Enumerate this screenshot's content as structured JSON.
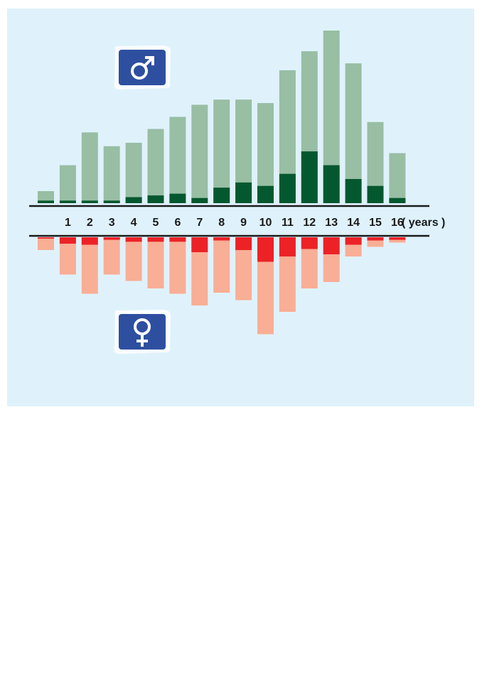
{
  "colors": {
    "background": "#dff2fc",
    "male_total": "#98bea4",
    "male_highlight": "#04582f",
    "female_total": "#f9ae96",
    "female_highlight": "#ec2227",
    "axis_line": "#1a1a1a",
    "symbol_blue": "#2e4fa0"
  },
  "icons": {
    "male": "male-symbol-icon",
    "female": "female-symbol-icon"
  },
  "chart_data": {
    "type": "bar",
    "layout": "mirrored",
    "categories": [
      "",
      "1",
      "2",
      "3",
      "4",
      "5",
      "6",
      "7",
      "8",
      "9",
      "10",
      "11",
      "12",
      "13",
      "14",
      "15",
      "16"
    ],
    "unit_label": "( years )",
    "ylim_male": [
      0,
      100
    ],
    "ylim_female": [
      0,
      100
    ],
    "male": {
      "total": [
        7,
        22,
        41,
        33,
        35,
        43,
        50,
        57,
        60,
        60,
        58,
        77,
        88,
        100,
        81,
        47,
        29
      ],
      "highlight": [
        1.5,
        1.5,
        1.5,
        1.5,
        3.5,
        4.5,
        5.5,
        3,
        9,
        12,
        10,
        17,
        30,
        22,
        14,
        10,
        3
      ]
    },
    "female": {
      "total": [
        12,
        35,
        53,
        35,
        41,
        48,
        53,
        64,
        52,
        59,
        91,
        70,
        48,
        42,
        18,
        9,
        5
      ],
      "highlight": [
        1.2,
        6,
        7,
        2.4,
        4.2,
        4.2,
        4.2,
        14,
        3,
        12,
        23,
        18,
        11,
        16,
        7,
        3,
        2.4
      ]
    }
  }
}
